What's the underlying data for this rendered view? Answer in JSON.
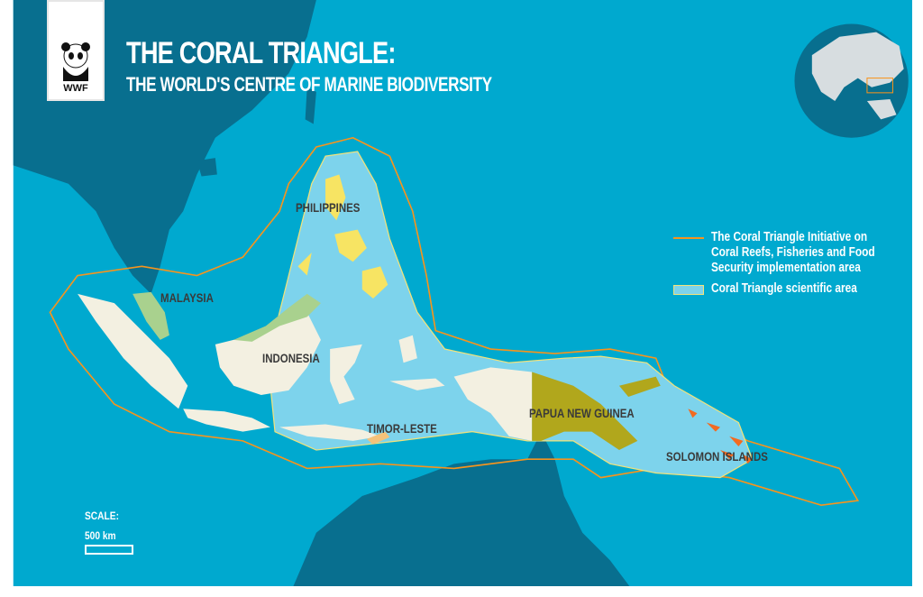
{
  "header": {
    "title": "THE CORAL TRIANGLE:",
    "subtitle": "THE WORLD'S CENTRE OF MARINE BIODIVERSITY",
    "logo_text": "WWF"
  },
  "labels": {
    "philippines": "PHILIPPINES",
    "malaysia": "MALAYSIA",
    "indonesia": "INDONESIA",
    "timor_leste": "TIMOR-LESTE",
    "papua_new_guinea": "PAPUA NEW GUINEA",
    "solomon_islands": "SOLOMON ISLANDS"
  },
  "legend": {
    "items": [
      {
        "label": "The Coral Triangle Initiative on Coral Reefs, Fisheries and Food Security implementation area",
        "lines": [
          "The Coral Triangle Initiative on",
          "Coral Reefs, Fisheries and Food",
          "Security implementation area"
        ],
        "symbol": "orange-line"
      },
      {
        "label": "Coral Triangle scientific area",
        "symbol": "light-blue-box"
      }
    ]
  },
  "scale": {
    "label": "SCALE:",
    "distance": "500 km"
  },
  "colors": {
    "ocean": "#00a9cf",
    "other_land": "#086f8f",
    "scientific_area": "#7dd3ec",
    "cti_boundary": "#f7941d",
    "philippines": "#f7e463",
    "malaysia": "#a9d18e",
    "indonesia": "#f3f0e1",
    "papua_new_guinea": "#b1a71c",
    "solomon_islands": "#f26b21",
    "timor_leste": "#f5c27a"
  }
}
